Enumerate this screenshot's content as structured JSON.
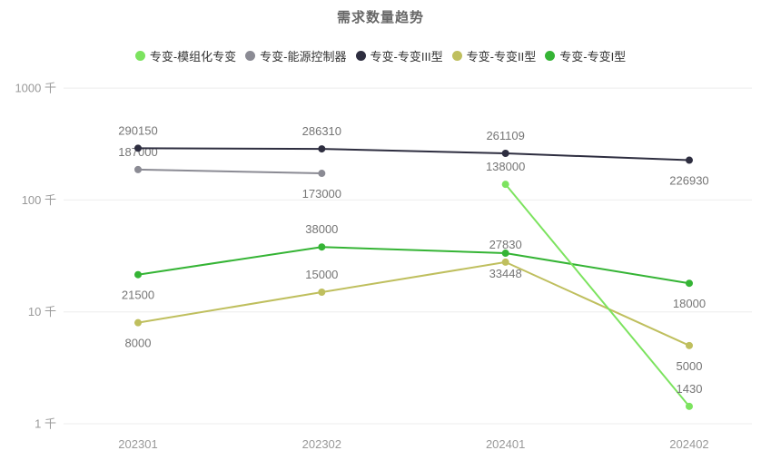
{
  "title": "需求数量趋势",
  "chart_data": {
    "type": "line",
    "title": "需求数量趋势",
    "x_categories": [
      "202301",
      "202302",
      "202401",
      "202402"
    ],
    "y_axis": {
      "scale": "log",
      "unit": "千",
      "tick_labels": [
        "1 千",
        "10 千",
        "100 千",
        "1000 千"
      ],
      "tick_values": [
        1000,
        10000,
        100000,
        1000000
      ],
      "range": [
        1000,
        1000000
      ]
    },
    "legend_position": "top",
    "grid": "horizontal-only",
    "background": "#ffffff",
    "series": [
      {
        "name": "专变-模组化专变",
        "color": "#7ce35f",
        "points": [
          {
            "x": "202401",
            "value": 138000,
            "label": "138000",
            "label_pos": "above"
          },
          {
            "x": "202402",
            "value": 1430,
            "label": "1430",
            "label_pos": "above"
          }
        ]
      },
      {
        "name": "专变-能源控制器",
        "color": "#8b8b94",
        "points": [
          {
            "x": "202301",
            "value": 187000,
            "label": "187000",
            "label_pos": "above"
          },
          {
            "x": "202302",
            "value": 173000,
            "label": "173000",
            "label_pos": "below"
          }
        ]
      },
      {
        "name": "专变-专变III型",
        "color": "#2e2e40",
        "points": [
          {
            "x": "202301",
            "value": 290150,
            "label": "290150",
            "label_pos": "above"
          },
          {
            "x": "202302",
            "value": 286310,
            "label": "286310",
            "label_pos": "above"
          },
          {
            "x": "202401",
            "value": 261109,
            "label": "261109",
            "label_pos": "above"
          },
          {
            "x": "202402",
            "value": 226930,
            "label": "226930",
            "label_pos": "below"
          }
        ]
      },
      {
        "name": "专变-专变II型",
        "color": "#bfbf5e",
        "points": [
          {
            "x": "202301",
            "value": 8000,
            "label": "8000",
            "label_pos": "below"
          },
          {
            "x": "202302",
            "value": 15000,
            "label": "15000",
            "label_pos": "above"
          },
          {
            "x": "202401",
            "value": 27830,
            "label": "27830",
            "label_pos": "above"
          },
          {
            "x": "202402",
            "value": 5000,
            "label": "5000",
            "label_pos": "below"
          }
        ]
      },
      {
        "name": "专变-专变I型",
        "color": "#35b435",
        "points": [
          {
            "x": "202301",
            "value": 21500,
            "label": "21500",
            "label_pos": "below"
          },
          {
            "x": "202302",
            "value": 38000,
            "label": "38000",
            "label_pos": "above"
          },
          {
            "x": "202401",
            "value": 33448,
            "label": "33448",
            "label_pos": "below"
          },
          {
            "x": "202402",
            "value": 18000,
            "label": "18000",
            "label_pos": "below"
          }
        ]
      }
    ]
  }
}
